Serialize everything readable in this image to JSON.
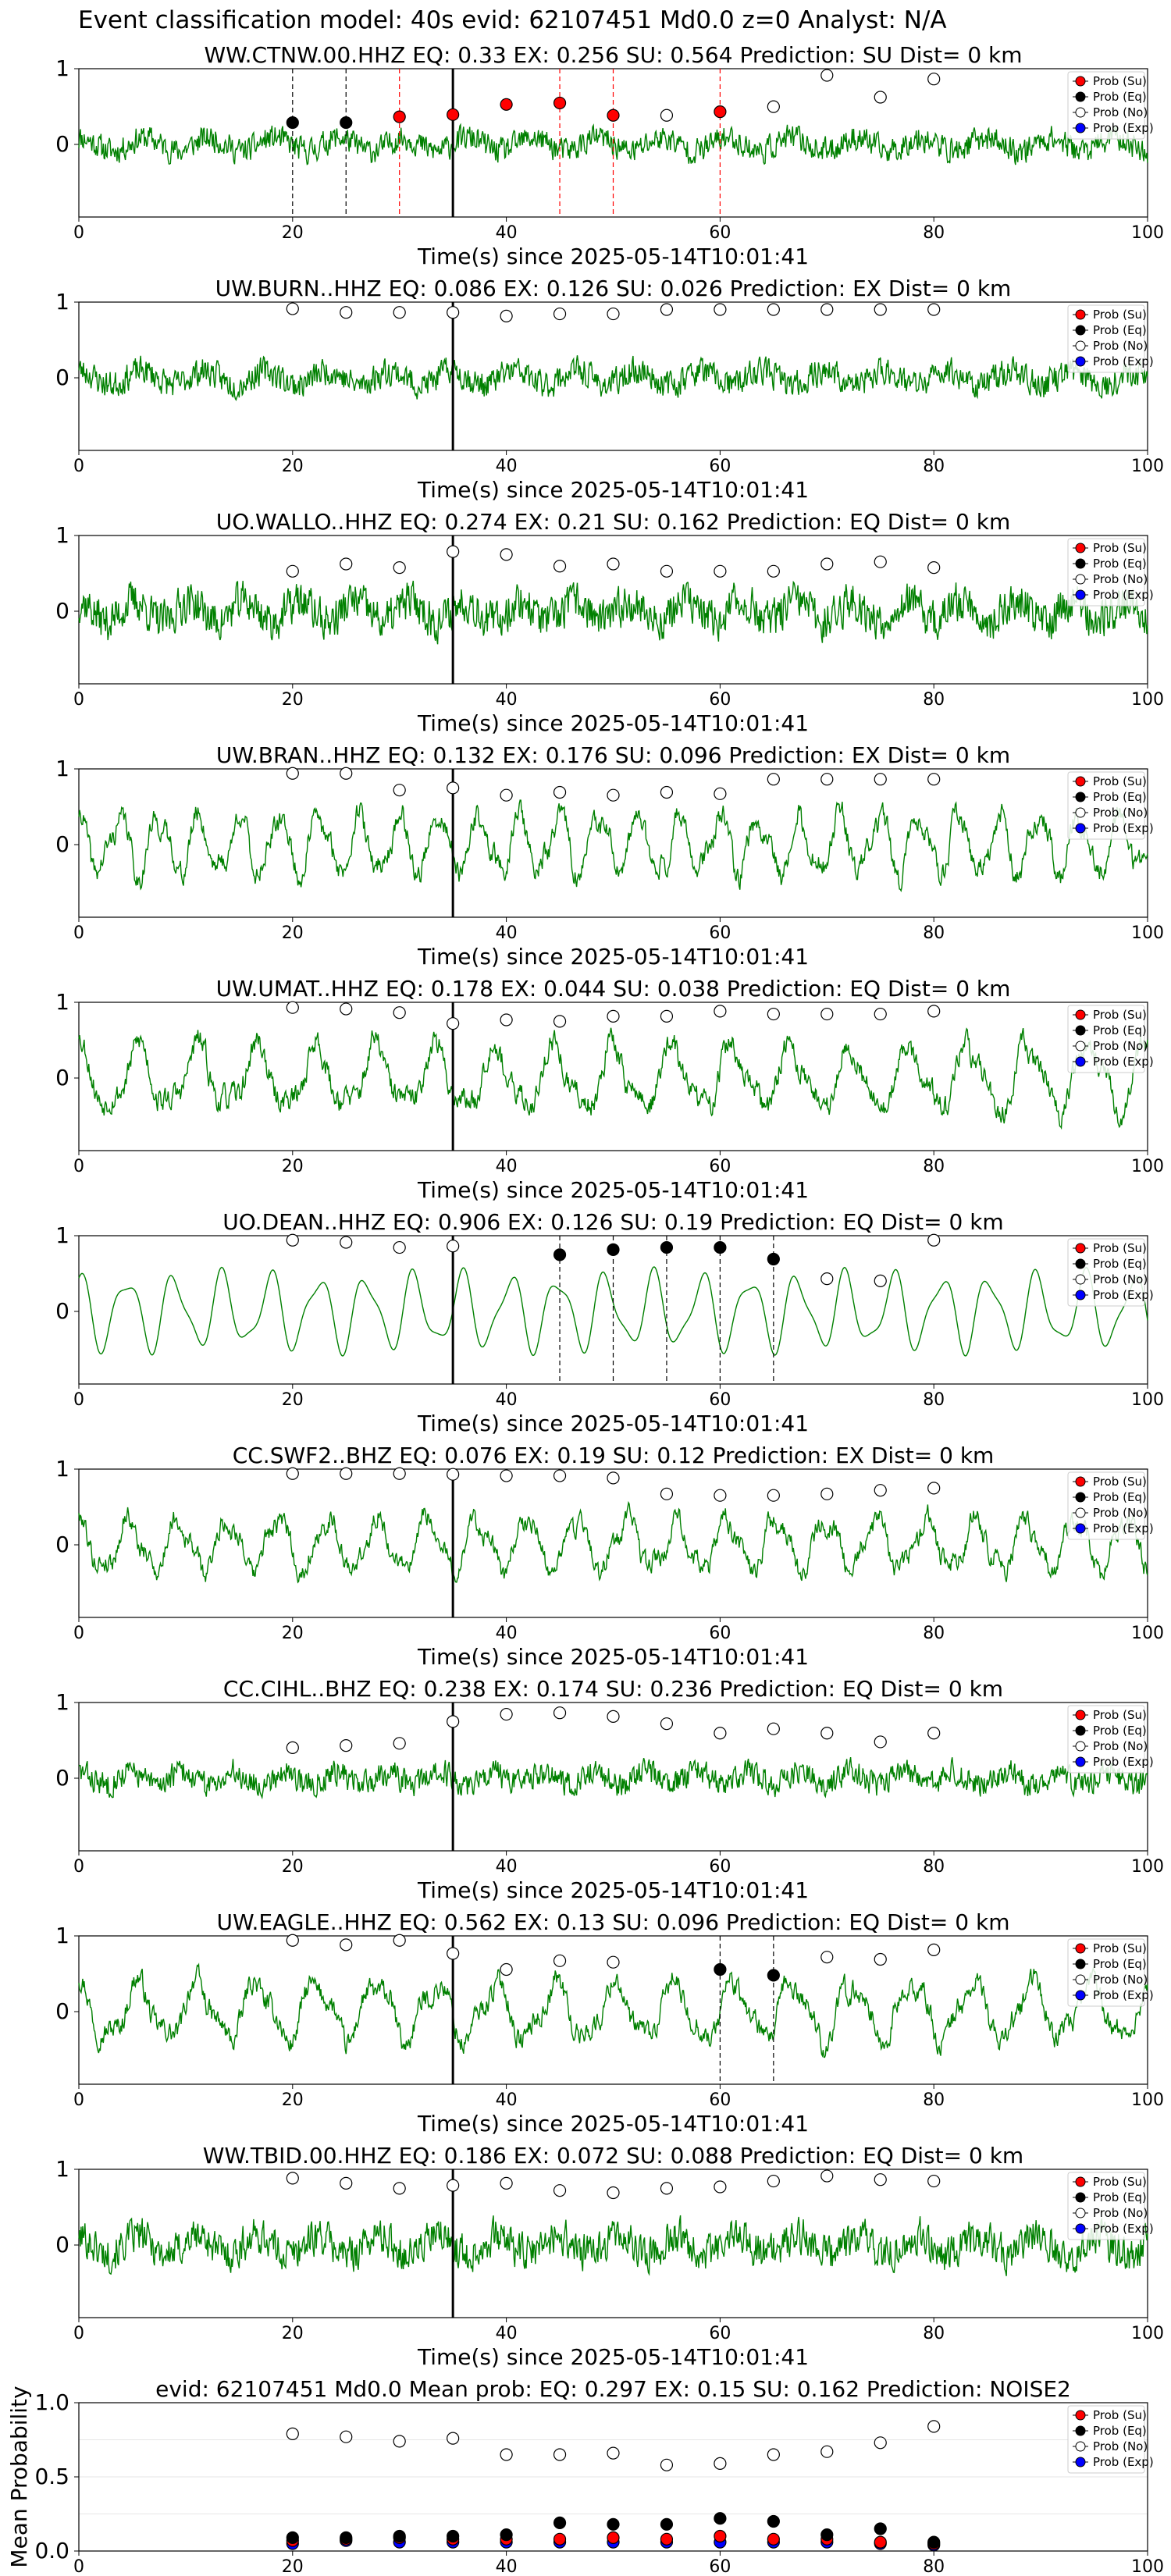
{
  "suptitle": "Event classification model: 40s evid: 62107451 Md0.0 z=0 Analyst: N/A",
  "legend_labels": [
    "Prob (Su)",
    "Prob (Eq)",
    "Prob (No)",
    "Prob (Exp)"
  ],
  "colors": {
    "waveform": "#008000",
    "su": "#ff0000",
    "eq": "#000000",
    "no": "#ffffff",
    "exp": "#0000ff"
  },
  "chart_data": [
    {
      "type": "line",
      "title": "WW.CTNW.00.HHZ   EQ: 0.33  EX: 0.256  SU: 0.564   Prediction: SU    Dist= 0 km",
      "xlabel": "Time(s) since 2025-05-14T10:01:41",
      "ylabel": "",
      "xlim": [
        0,
        100
      ],
      "ylim": [
        -1,
        1
      ],
      "xticks": [
        0,
        20,
        40,
        60,
        80,
        100
      ],
      "yticks": [
        0,
        1
      ],
      "pick_time": 35,
      "waveform": {
        "style": "noisy",
        "amp": 0.35,
        "seed": 11
      },
      "points": {
        "x": [
          20,
          25,
          30,
          35,
          40,
          45,
          50,
          55,
          60,
          65,
          70,
          75,
          80
        ],
        "eq": [
          0.3,
          0.3,
          null,
          null,
          null,
          null,
          null,
          null,
          null,
          null,
          null,
          null,
          null
        ],
        "su": [
          null,
          null,
          0.38,
          0.41,
          0.55,
          0.57,
          0.4,
          null,
          0.45,
          null,
          null,
          null,
          null
        ],
        "no": [
          null,
          null,
          null,
          null,
          null,
          null,
          null,
          0.4,
          null,
          0.52,
          0.95,
          0.65,
          0.9
        ]
      },
      "vlines_eq": [
        20,
        25
      ],
      "vlines_su": [
        30,
        45,
        50,
        60
      ]
    },
    {
      "type": "line",
      "title": "UW.BURN..HHZ   EQ: 0.086  EX: 0.126  SU: 0.026   Prediction: EX    Dist= 0 km",
      "xlabel": "Time(s) since 2025-05-14T10:01:41",
      "ylabel": "",
      "xlim": [
        0,
        100
      ],
      "ylim": [
        -1,
        1
      ],
      "xticks": [
        0,
        20,
        40,
        60,
        80,
        100
      ],
      "yticks": [
        0,
        1
      ],
      "pick_time": 35,
      "waveform": {
        "style": "noisy",
        "amp": 0.38,
        "seed": 23
      },
      "points": {
        "x": [
          20,
          25,
          30,
          35,
          40,
          45,
          50,
          55,
          60,
          65,
          70,
          75,
          80
        ],
        "eq": [],
        "su": [],
        "no": [
          0.95,
          0.9,
          0.9,
          0.9,
          0.85,
          0.88,
          0.88,
          0.94,
          0.94,
          0.94,
          0.94,
          0.94,
          0.94
        ]
      },
      "vlines_eq": [],
      "vlines_su": []
    },
    {
      "type": "line",
      "title": "UO.WALLO..HHZ   EQ: 0.274  EX: 0.21  SU: 0.162   Prediction: EQ    Dist= 0 km",
      "xlabel": "Time(s) since 2025-05-14T10:01:41",
      "ylabel": "",
      "xlim": [
        0,
        100
      ],
      "ylim": [
        -1,
        1
      ],
      "xticks": [
        0,
        20,
        40,
        60,
        80,
        100
      ],
      "yticks": [
        0,
        1
      ],
      "pick_time": 35,
      "waveform": {
        "style": "noisy",
        "amp": 0.55,
        "seed": 37
      },
      "points": {
        "x": [
          20,
          25,
          30,
          35,
          40,
          45,
          50,
          55,
          60,
          65,
          70,
          75,
          80
        ],
        "eq": [],
        "su": [],
        "no": [
          0.55,
          0.65,
          0.6,
          0.82,
          0.78,
          0.62,
          0.65,
          0.55,
          0.55,
          0.55,
          0.65,
          0.68,
          0.6
        ]
      },
      "vlines_eq": [],
      "vlines_su": []
    },
    {
      "type": "line",
      "title": "UW.BRAN..HHZ   EQ: 0.132  EX: 0.176  SU: 0.096   Prediction: EX    Dist= 0 km",
      "xlabel": "Time(s) since 2025-05-14T10:01:41",
      "ylabel": "",
      "xlim": [
        0,
        100
      ],
      "ylim": [
        -1,
        1
      ],
      "xticks": [
        0,
        20,
        40,
        60,
        80,
        100
      ],
      "yticks": [
        0,
        1
      ],
      "pick_time": 35,
      "waveform": {
        "style": "oscillating",
        "amp": 0.55,
        "seed": 41
      },
      "points": {
        "x": [
          20,
          25,
          30,
          35,
          40,
          45,
          50,
          55,
          60,
          65,
          70,
          75,
          80
        ],
        "eq": [],
        "su": [],
        "no": [
          0.98,
          0.98,
          0.75,
          0.78,
          0.68,
          0.72,
          0.68,
          0.72,
          0.7,
          0.9,
          0.9,
          0.9,
          0.9
        ]
      },
      "vlines_eq": [],
      "vlines_su": []
    },
    {
      "type": "line",
      "title": "UW.UMAT..HHZ   EQ: 0.178  EX: 0.044  SU: 0.038   Prediction: EQ    Dist= 0 km",
      "xlabel": "Time(s) since 2025-05-14T10:01:41",
      "ylabel": "",
      "xlim": [
        0,
        100
      ],
      "ylim": [
        -1,
        1
      ],
      "xticks": [
        0,
        20,
        40,
        60,
        80,
        100
      ],
      "yticks": [
        0,
        1
      ],
      "pick_time": 35,
      "waveform": {
        "style": "oscillating",
        "amp": 0.6,
        "seed": 53
      },
      "points": {
        "x": [
          20,
          25,
          30,
          35,
          40,
          45,
          50,
          55,
          60,
          65,
          70,
          75,
          80
        ],
        "eq": [],
        "su": [],
        "no": [
          0.97,
          0.95,
          0.9,
          0.75,
          0.8,
          0.78,
          0.85,
          0.85,
          0.92,
          0.88,
          0.88,
          0.88,
          0.92
        ]
      },
      "vlines_eq": [],
      "vlines_su": []
    },
    {
      "type": "line",
      "title": "UO.DEAN..HHZ   EQ: 0.906  EX: 0.126  SU: 0.19   Prediction: EQ    Dist= 0 km",
      "xlabel": "Time(s) since 2025-05-14T10:01:41",
      "ylabel": "",
      "xlim": [
        0,
        100
      ],
      "ylim": [
        -1,
        1
      ],
      "xticks": [
        0,
        20,
        40,
        60,
        80,
        100
      ],
      "yticks": [
        0,
        1
      ],
      "pick_time": 35,
      "waveform": {
        "style": "smooth",
        "amp": 0.6,
        "seed": 67
      },
      "points": {
        "x": [
          20,
          25,
          30,
          35,
          40,
          45,
          50,
          55,
          60,
          65,
          70,
          75,
          80
        ],
        "eq": [
          null,
          null,
          null,
          null,
          null,
          0.78,
          0.85,
          0.88,
          0.88,
          0.72,
          null,
          null,
          null
        ],
        "su": [],
        "no": [
          0.98,
          0.95,
          0.88,
          0.9,
          null,
          null,
          null,
          null,
          null,
          null,
          0.45,
          0.42,
          0.98
        ]
      },
      "vlines_eq": [
        45,
        50,
        55,
        60,
        65
      ],
      "vlines_su": []
    },
    {
      "type": "line",
      "title": "CC.SWF2..BHZ   EQ: 0.076  EX: 0.19  SU: 0.12   Prediction: EX    Dist= 0 km",
      "xlabel": "Time(s) since 2025-05-14T10:01:41",
      "ylabel": "",
      "xlim": [
        0,
        100
      ],
      "ylim": [
        -1,
        1
      ],
      "xticks": [
        0,
        20,
        40,
        60,
        80,
        100
      ],
      "yticks": [
        0,
        1
      ],
      "pick_time": 35,
      "waveform": {
        "style": "oscillating",
        "amp": 0.5,
        "seed": 79
      },
      "points": {
        "x": [
          20,
          25,
          30,
          35,
          40,
          45,
          50,
          55,
          60,
          65,
          70,
          75,
          80
        ],
        "eq": [],
        "su": [],
        "no": [
          0.98,
          0.98,
          0.98,
          0.97,
          0.95,
          0.95,
          0.92,
          0.7,
          0.68,
          0.68,
          0.7,
          0.75,
          0.78
        ]
      },
      "vlines_eq": [],
      "vlines_su": []
    },
    {
      "type": "line",
      "title": "CC.CIHL..BHZ   EQ: 0.238  EX: 0.174  SU: 0.236   Prediction: EQ    Dist= 0 km",
      "xlabel": "Time(s) since 2025-05-14T10:01:41",
      "ylabel": "",
      "xlim": [
        0,
        100
      ],
      "ylim": [
        -1,
        1
      ],
      "xticks": [
        0,
        20,
        40,
        60,
        80,
        100
      ],
      "yticks": [
        0,
        1
      ],
      "pick_time": 35,
      "waveform": {
        "style": "noisy",
        "amp": 0.35,
        "seed": 83
      },
      "points": {
        "x": [
          20,
          25,
          30,
          35,
          40,
          45,
          50,
          55,
          60,
          65,
          70,
          75,
          80
        ],
        "eq": [],
        "su": [],
        "no": [
          0.42,
          0.45,
          0.48,
          0.78,
          0.88,
          0.9,
          0.85,
          0.75,
          0.62,
          0.68,
          0.62,
          0.5,
          0.62
        ]
      },
      "vlines_eq": [],
      "vlines_su": []
    },
    {
      "type": "line",
      "title": "UW.EAGLE..HHZ   EQ: 0.562  EX: 0.13  SU: 0.096   Prediction: EQ    Dist= 0 km",
      "xlabel": "Time(s) since 2025-05-14T10:01:41",
      "ylabel": "",
      "xlim": [
        0,
        100
      ],
      "ylim": [
        -1,
        1
      ],
      "xticks": [
        0,
        20,
        40,
        60,
        80,
        100
      ],
      "yticks": [
        0,
        1
      ],
      "pick_time": 35,
      "waveform": {
        "style": "oscillating",
        "amp": 0.55,
        "seed": 97
      },
      "points": {
        "x": [
          20,
          25,
          30,
          35,
          40,
          45,
          50,
          55,
          60,
          65,
          70,
          75,
          80
        ],
        "eq": [
          null,
          null,
          null,
          null,
          null,
          null,
          null,
          null,
          0.58,
          0.5,
          null,
          null,
          null
        ],
        "su": [],
        "no": [
          0.98,
          0.92,
          0.98,
          0.8,
          0.58,
          0.7,
          0.68,
          null,
          null,
          null,
          0.75,
          0.72,
          0.85
        ]
      },
      "vlines_eq": [
        60,
        65
      ],
      "vlines_su": []
    },
    {
      "type": "line",
      "title": "WW.TBID.00.HHZ   EQ: 0.186  EX: 0.072  SU: 0.088   Prediction: EQ    Dist= 0 km",
      "xlabel": "Time(s) since 2025-05-14T10:01:41",
      "ylabel": "",
      "xlim": [
        0,
        100
      ],
      "ylim": [
        -1,
        1
      ],
      "xticks": [
        0,
        20,
        40,
        60,
        80,
        100
      ],
      "yticks": [
        0,
        1
      ],
      "pick_time": 35,
      "waveform": {
        "style": "noisy",
        "amp": 0.5,
        "seed": 101
      },
      "points": {
        "x": [
          20,
          25,
          30,
          35,
          40,
          45,
          50,
          55,
          60,
          65,
          70,
          75,
          80
        ],
        "eq": [],
        "su": [],
        "no": [
          0.92,
          0.85,
          0.78,
          0.82,
          0.85,
          0.75,
          0.72,
          0.78,
          0.8,
          0.88,
          0.95,
          0.9,
          0.88
        ]
      },
      "vlines_eq": [],
      "vlines_su": []
    },
    {
      "type": "scatter",
      "title": "evid: 62107451  Md0.0   Mean prob:   EQ: 0.297  EX: 0.15  SU: 0.162   Prediction: NOISE2",
      "xlabel": "",
      "ylabel": "Mean Probability",
      "xlim": [
        0,
        100
      ],
      "ylim": [
        0,
        1
      ],
      "xticks": [
        0,
        20,
        40,
        60,
        80,
        100
      ],
      "yticks": [
        0.0,
        0.5,
        1.0
      ],
      "ytick_labels": [
        "0.0",
        "0.5",
        "1.0"
      ],
      "points": {
        "x": [
          20,
          25,
          30,
          35,
          40,
          45,
          50,
          55,
          60,
          65,
          70,
          75,
          80
        ],
        "no": [
          0.79,
          0.77,
          0.74,
          0.76,
          0.65,
          0.65,
          0.66,
          0.58,
          0.59,
          0.65,
          0.67,
          0.73,
          0.84
        ],
        "eq": [
          0.09,
          0.09,
          0.1,
          0.1,
          0.11,
          0.19,
          0.18,
          0.18,
          0.22,
          0.2,
          0.11,
          0.15,
          0.06
        ],
        "su": [
          0.07,
          0.08,
          0.09,
          0.08,
          0.08,
          0.08,
          0.09,
          0.08,
          0.1,
          0.08,
          0.08,
          0.06,
          0.05
        ],
        "exp": [
          0.05,
          0.07,
          0.06,
          0.06,
          0.06,
          0.06,
          0.06,
          0.06,
          0.06,
          0.06,
          0.06,
          0.05,
          0.04
        ]
      }
    }
  ]
}
